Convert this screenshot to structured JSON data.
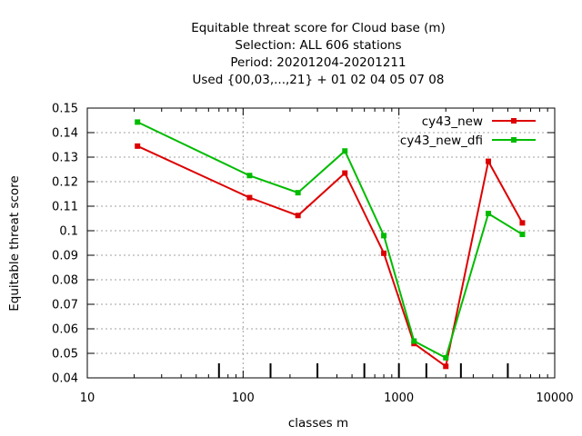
{
  "chart_data": {
    "type": "line",
    "title_lines": [
      "Equitable threat score  for Cloud base (m)",
      "Selection: ALL    606 stations",
      "Period: 20201204-20201211",
      "Used {00,03,...,21} + 01 02 04 05 07 08"
    ],
    "xlabel": "classes m",
    "ylabel": "Equitable threat score",
    "x_scale": "log",
    "xlim": [
      10,
      10000
    ],
    "ylim": [
      0.04,
      0.15
    ],
    "x_tick_labels": [
      "10",
      "100",
      "1000",
      "10000"
    ],
    "y_tick_labels": [
      "0.04",
      "0.05",
      "0.06",
      "0.07",
      "0.08",
      "0.09",
      "0.1",
      "0.11",
      "0.12",
      "0.13",
      "0.14",
      "0.15"
    ],
    "class_markers": [
      70,
      150,
      300,
      600,
      1000,
      1500,
      2500,
      5000
    ],
    "grid": true,
    "legend_position": "top-right",
    "series": [
      {
        "name": "cy43_new",
        "color": "#dd0000",
        "x": [
          21,
          110,
          225,
          450,
          800,
          1250,
          2000,
          3750,
          6200
        ],
        "y": [
          0.1345,
          0.1135,
          0.1062,
          0.1235,
          0.0908,
          0.054,
          0.0447,
          0.1283,
          0.1032
        ]
      },
      {
        "name": "cy43_new_dfi",
        "color": "#00bb00",
        "x": [
          21,
          110,
          225,
          450,
          800,
          1250,
          2000,
          3750,
          6200
        ],
        "y": [
          0.1443,
          0.1225,
          0.1155,
          0.1325,
          0.098,
          0.055,
          0.0482,
          0.107,
          0.0985
        ]
      }
    ]
  }
}
